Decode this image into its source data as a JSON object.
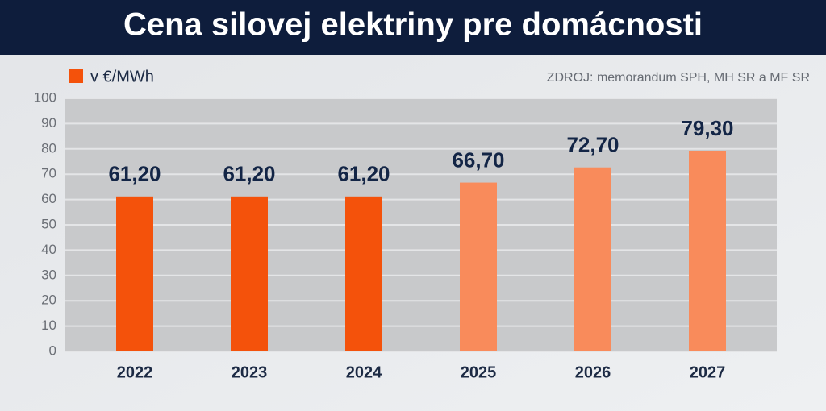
{
  "chart_data": {
    "type": "bar",
    "title": "Cena silovej elektriny pre domácnosti",
    "source": "ZDROJ: memorandum SPH, MH SR a MF SR",
    "categories": [
      "2022",
      "2023",
      "2024",
      "2025",
      "2026",
      "2027"
    ],
    "series": [
      {
        "name": "v €/MWh",
        "color": "#f4520b",
        "colors": [
          "#f4520b",
          "#f4520b",
          "#f4520b",
          "#f98b5b",
          "#f98b5b",
          "#f98b5b"
        ],
        "values": [
          61.2,
          61.2,
          61.2,
          66.7,
          72.7,
          79.3
        ],
        "value_labels": [
          "61,20",
          "61,20",
          "61,20",
          "66,70",
          "72,70",
          "79,30"
        ]
      }
    ],
    "ylim": [
      0,
      100
    ],
    "yticks": [
      0,
      10,
      20,
      30,
      40,
      50,
      60,
      70,
      80,
      90,
      100
    ],
    "grid": true
  }
}
